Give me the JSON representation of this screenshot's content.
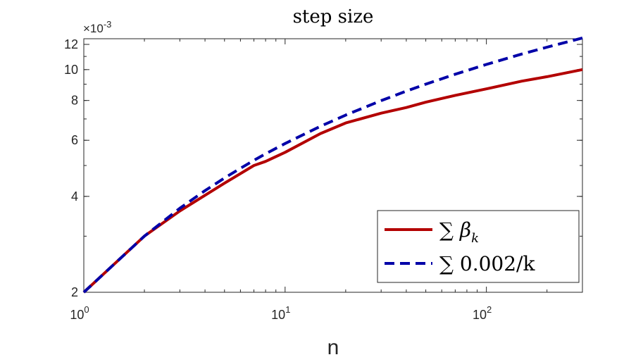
{
  "chart_data": {
    "type": "line",
    "title": "step size",
    "xlabel": "n",
    "ylabel": "",
    "xscale": "log",
    "yscale": "log",
    "xlim": [
      1,
      300
    ],
    "ylim": [
      0.002,
      0.0125
    ],
    "y_multiplier_label": "×10",
    "y_multiplier_exponent": "-3",
    "x_ticks": [
      {
        "value": 1,
        "base": "10",
        "exp": "0"
      },
      {
        "value": 10,
        "base": "10",
        "exp": "1"
      },
      {
        "value": 100,
        "base": "10",
        "exp": "2"
      }
    ],
    "y_ticks": [
      {
        "value": 0.002,
        "label": "2"
      },
      {
        "value": 0.004,
        "label": "4"
      },
      {
        "value": 0.006,
        "label": "6"
      },
      {
        "value": 0.008,
        "label": "8"
      },
      {
        "value": 0.01,
        "label": "10"
      },
      {
        "value": 0.012,
        "label": "12"
      }
    ],
    "grid": false,
    "legend_position": "bottom-right",
    "series": [
      {
        "name": "∑ β_k",
        "legend_main": "∑ β",
        "legend_sub": "k",
        "color": "#b30000",
        "style": "solid",
        "points": [
          [
            1,
            0.002
          ],
          [
            2,
            0.003
          ],
          [
            3,
            0.0036
          ],
          [
            5,
            0.0044
          ],
          [
            7,
            0.005
          ],
          [
            8,
            0.00515
          ],
          [
            10,
            0.0055
          ],
          [
            15,
            0.0063
          ],
          [
            20,
            0.0068
          ],
          [
            30,
            0.0073
          ],
          [
            40,
            0.0076
          ],
          [
            50,
            0.0079
          ],
          [
            70,
            0.0083
          ],
          [
            100,
            0.0087
          ],
          [
            150,
            0.0092
          ],
          [
            200,
            0.0095
          ],
          [
            300,
            0.01
          ]
        ]
      },
      {
        "name": "∑ 0.002/k",
        "legend_main": "∑ 0.002/k",
        "legend_sub": "",
        "color": "#0000a8",
        "style": "dashed",
        "points": [
          [
            1,
            0.002
          ],
          [
            2,
            0.003
          ],
          [
            3,
            0.00367
          ],
          [
            4,
            0.00417
          ],
          [
            5,
            0.00457
          ],
          [
            6,
            0.0049
          ],
          [
            7,
            0.00519
          ],
          [
            8,
            0.00544
          ],
          [
            10,
            0.00586
          ],
          [
            15,
            0.00664
          ],
          [
            20,
            0.0072
          ],
          [
            30,
            0.00799
          ],
          [
            40,
            0.00856
          ],
          [
            50,
            0.009
          ],
          [
            70,
            0.00967
          ],
          [
            100,
            0.01038
          ],
          [
            150,
            0.01119
          ],
          [
            200,
            0.01176
          ],
          [
            300,
            0.01257
          ]
        ]
      }
    ]
  }
}
